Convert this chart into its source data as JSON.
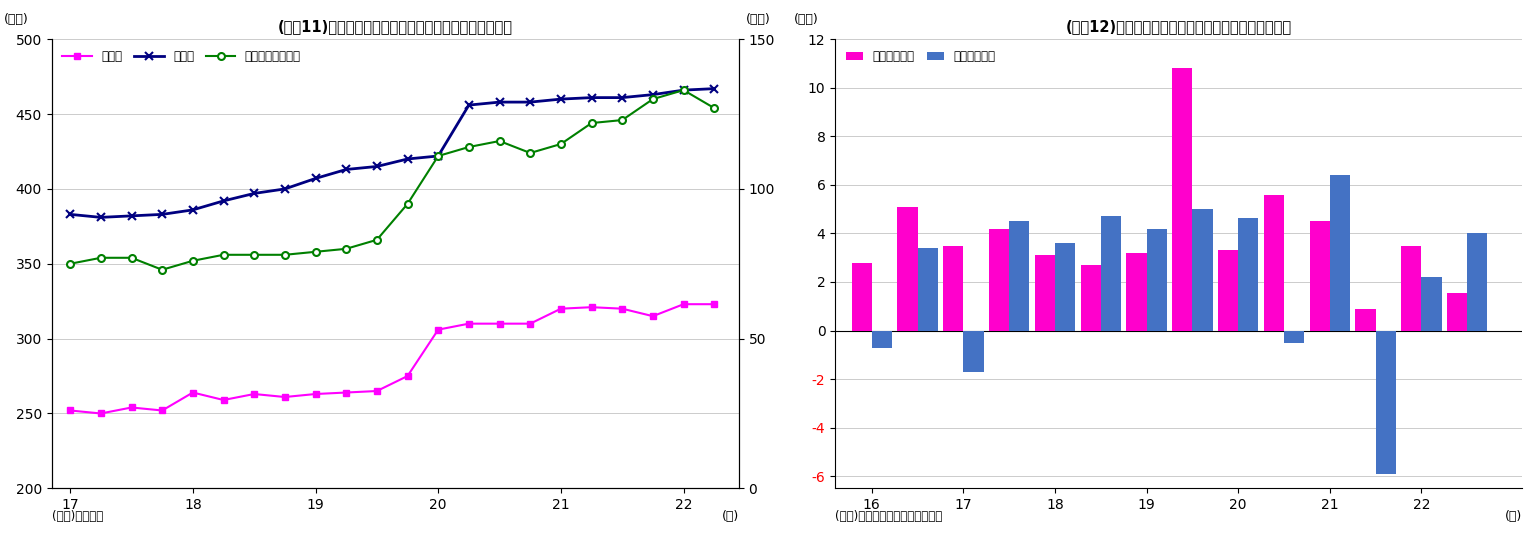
{
  "chart1": {
    "title": "(図表11)民間非金融法人の現須金・借入・債務証券残高",
    "ylabel_left": "(兆円)",
    "ylabel_right": "(兆円)",
    "xlabel": "(年)",
    "source": "(資料)日本銀行",
    "x_ticks": [
      17,
      18,
      19,
      20,
      21,
      22
    ],
    "ylim_left": [
      200,
      500
    ],
    "ylim_right": [
      0,
      150
    ],
    "yticks_left": [
      200,
      250,
      300,
      350,
      400,
      450,
      500
    ],
    "yticks_right": [
      0,
      50,
      100,
      150
    ],
    "xlim": [
      16.85,
      22.45
    ],
    "genkin_x": [
      17.0,
      17.25,
      17.5,
      17.75,
      18.0,
      18.25,
      18.5,
      18.75,
      19.0,
      19.25,
      19.5,
      19.75,
      20.0,
      20.25,
      20.5,
      20.75,
      21.0,
      21.25,
      21.5,
      21.75,
      22.0,
      22.25
    ],
    "genkin_y": [
      252,
      250,
      254,
      252,
      264,
      259,
      263,
      261,
      263,
      264,
      265,
      275,
      306,
      310,
      310,
      310,
      320,
      321,
      320,
      315,
      323,
      323
    ],
    "kariire_x": [
      17.0,
      17.25,
      17.5,
      17.75,
      18.0,
      18.25,
      18.5,
      18.75,
      19.0,
      19.25,
      19.5,
      19.75,
      20.0,
      20.25,
      20.5,
      20.75,
      21.0,
      21.25,
      21.5,
      21.75,
      22.0,
      22.25
    ],
    "kariire_y": [
      383,
      381,
      382,
      383,
      386,
      392,
      397,
      400,
      407,
      413,
      415,
      420,
      422,
      456,
      458,
      458,
      460,
      461,
      461,
      463,
      466,
      467
    ],
    "saimu_x": [
      17.0,
      17.25,
      17.5,
      17.75,
      18.0,
      18.25,
      18.5,
      18.75,
      19.0,
      19.25,
      19.5,
      19.75,
      20.0,
      20.25,
      20.5,
      20.75,
      21.0,
      21.25,
      21.5,
      21.75,
      22.0,
      22.25
    ],
    "saimu_y": [
      75,
      77,
      77,
      73,
      76,
      78,
      78,
      78,
      79,
      80,
      83,
      95,
      111,
      114,
      116,
      112,
      115,
      122,
      123,
      130,
      133,
      127
    ],
    "genkin_color": "#FF00FF",
    "kariire_color": "#000080",
    "saimu_color": "#008000",
    "genkin_label": "現須金",
    "kariire_label": "借入金",
    "saimu_label": "債務証券（右軸）"
  },
  "chart2": {
    "title": "(図表12)民間非金融法人の対外投資額（資金フロー）",
    "ylabel": "(兆円)",
    "xlabel": "(年)",
    "source": "(資料)日本銀行「資金循環統計」",
    "x_ticks": [
      16,
      17,
      18,
      19,
      20,
      21,
      22
    ],
    "ylim": [
      -6.5,
      12
    ],
    "yticks": [
      -6,
      -4,
      -2,
      0,
      2,
      4,
      6,
      8,
      10,
      12
    ],
    "xlim": [
      15.6,
      23.1
    ],
    "bar_width": 0.22,
    "half_years": [
      16.0,
      16.5,
      17.0,
      17.5,
      18.0,
      18.5,
      19.0,
      19.5,
      20.0,
      20.5,
      21.0,
      21.5,
      22.0,
      22.5
    ],
    "direct_vals": [
      2.8,
      5.1,
      3.5,
      4.2,
      3.1,
      2.7,
      3.2,
      10.8,
      3.3,
      5.6,
      4.5,
      0.9,
      3.5,
      1.55
    ],
    "sec_vals": [
      -0.7,
      3.4,
      -1.7,
      4.5,
      3.6,
      4.7,
      4.2,
      5.0,
      4.65,
      -0.5,
      6.4,
      -5.9,
      2.2,
      4.0
    ],
    "direct_color": "#FF00CC",
    "sec_color": "#4472C4",
    "direct_label": "対外直接投資",
    "sec_label": "対外証券投資"
  }
}
